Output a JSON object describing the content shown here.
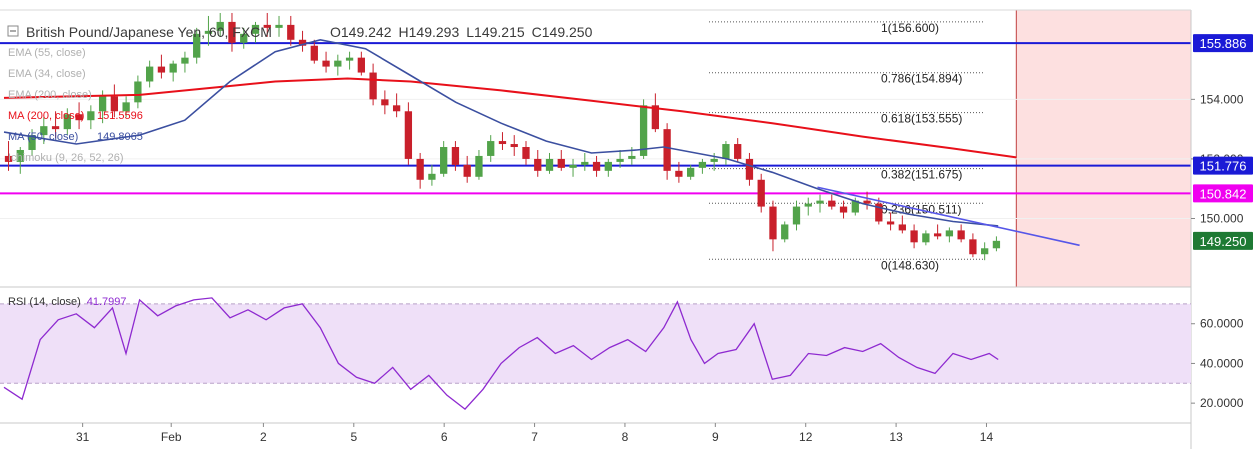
{
  "header": {
    "symbol": "British Pound/Japanese Yen, 60, FXCM",
    "open_label": "O",
    "open": "149.242",
    "high_label": "H",
    "high": "149.293",
    "low_label": "L",
    "low": "149.215",
    "close_label": "C",
    "close": "149.250"
  },
  "indicators": [
    {
      "label": "EMA (55, close)",
      "value": "",
      "color": "#b0b0b0"
    },
    {
      "label": "EMA (34, close)",
      "value": "",
      "color": "#b0b0b0"
    },
    {
      "label": "EMA (200, close)",
      "value": "",
      "color": "#b0b0b0"
    },
    {
      "label": "MA (200, close)",
      "value": "151.5596",
      "color": "#e8101a"
    },
    {
      "label": "MA (50, close)",
      "value": "149.8065",
      "color": "#3b4fa0"
    },
    {
      "label": "Ichimoku (9, 26, 52, 26)",
      "value": "",
      "color": "#b0b0b0"
    }
  ],
  "colors": {
    "up_candle": "#52a34a",
    "down_candle": "#c9202b",
    "ma200": "#e8101a",
    "ma50": "#3b4fa0",
    "support_line": "#1a1ad6",
    "pivot_line": "#f000f0",
    "trend_line": "#5656e8",
    "rsi": "#8e2ad0",
    "rsi_band": "#efe0f8",
    "future_zone": "#fde0e0",
    "last_price": "#1e7a34"
  },
  "chart_data": {
    "type": "candlestick",
    "price_axis": {
      "range": [
        147.7,
        157.0
      ],
      "ticks": [
        "154.000",
        "152.000",
        "150.000"
      ]
    },
    "time_axis": {
      "range": [
        0,
        13.0
      ],
      "labels": [
        {
          "t": 0.87,
          "text": "31"
        },
        {
          "t": 1.85,
          "text": "Feb"
        },
        {
          "t": 2.87,
          "text": "2"
        },
        {
          "t": 3.87,
          "text": "5"
        },
        {
          "t": 4.87,
          "text": "6"
        },
        {
          "t": 5.87,
          "text": "7"
        },
        {
          "t": 6.87,
          "text": "8"
        },
        {
          "t": 7.87,
          "text": "9"
        },
        {
          "t": 8.87,
          "text": "12"
        },
        {
          "t": 9.87,
          "text": "13"
        },
        {
          "t": 10.87,
          "text": "14"
        }
      ]
    },
    "horizontal_levels": [
      {
        "value": 155.886,
        "label": "155.886",
        "kind": "support"
      },
      {
        "value": 151.776,
        "label": "151.776",
        "kind": "support"
      },
      {
        "value": 150.842,
        "label": "150.842",
        "kind": "pivot"
      }
    ],
    "last_price": {
      "value": 149.25,
      "label": "149.250"
    },
    "fibonacci": [
      {
        "label": "1(156.600)",
        "value": 156.6
      },
      {
        "label": "0.786(154.894)",
        "value": 154.894
      },
      {
        "label": "0.618(153.555)",
        "value": 153.555
      },
      {
        "label": "0.382(151.675)",
        "value": 151.675
      },
      {
        "label": "0.236(150.511)",
        "value": 150.511
      },
      {
        "label": "0(148.630)",
        "value": 148.63
      }
    ],
    "fib_time_span": [
      7.8,
      10.85
    ],
    "trend_line": {
      "t": [
        9.0,
        11.9
      ],
      "price": [
        151.05,
        149.1
      ]
    },
    "future_zone_from": 11.2,
    "ohlc": [
      [
        152.1,
        152.6,
        151.6,
        151.9
      ],
      [
        151.9,
        152.4,
        151.5,
        152.3
      ],
      [
        152.3,
        153.0,
        152.1,
        152.8
      ],
      [
        152.8,
        153.4,
        152.5,
        153.1
      ],
      [
        153.1,
        153.6,
        152.7,
        153.0
      ],
      [
        153.0,
        153.7,
        152.8,
        153.5
      ],
      [
        153.5,
        153.9,
        153.0,
        153.3
      ],
      [
        153.3,
        153.8,
        153.0,
        153.6
      ],
      [
        153.6,
        154.3,
        153.2,
        154.1
      ],
      [
        154.1,
        154.5,
        153.4,
        153.6
      ],
      [
        153.6,
        154.1,
        153.4,
        153.9
      ],
      [
        153.9,
        154.8,
        153.7,
        154.6
      ],
      [
        154.6,
        155.3,
        154.4,
        155.1
      ],
      [
        155.1,
        155.5,
        154.7,
        154.9
      ],
      [
        154.9,
        155.3,
        154.6,
        155.2
      ],
      [
        155.2,
        155.6,
        154.9,
        155.4
      ],
      [
        155.4,
        156.4,
        155.2,
        156.2
      ],
      [
        156.2,
        156.8,
        155.8,
        156.3
      ],
      [
        156.3,
        156.9,
        156.1,
        156.6
      ],
      [
        156.6,
        156.9,
        155.6,
        155.9
      ],
      [
        155.9,
        156.4,
        155.7,
        156.2
      ],
      [
        156.2,
        156.6,
        155.9,
        156.5
      ],
      [
        156.5,
        156.9,
        156.1,
        156.4
      ],
      [
        156.4,
        156.8,
        156.1,
        156.5
      ],
      [
        156.5,
        156.8,
        155.8,
        156.0
      ],
      [
        156.0,
        156.3,
        155.6,
        155.8
      ],
      [
        155.8,
        156.0,
        155.2,
        155.3
      ],
      [
        155.3,
        155.6,
        154.9,
        155.1
      ],
      [
        155.1,
        155.5,
        154.8,
        155.3
      ],
      [
        155.3,
        155.6,
        155.0,
        155.4
      ],
      [
        155.4,
        155.6,
        154.8,
        154.9
      ],
      [
        154.9,
        155.2,
        153.8,
        154.0
      ],
      [
        154.0,
        154.3,
        153.5,
        153.8
      ],
      [
        153.8,
        154.2,
        153.4,
        153.6
      ],
      [
        153.6,
        153.9,
        151.8,
        152.0
      ],
      [
        152.0,
        152.2,
        151.0,
        151.3
      ],
      [
        151.3,
        151.8,
        151.1,
        151.5
      ],
      [
        151.5,
        152.6,
        151.4,
        152.4
      ],
      [
        152.4,
        152.6,
        151.6,
        151.8
      ],
      [
        151.8,
        152.1,
        151.2,
        151.4
      ],
      [
        151.4,
        152.3,
        151.3,
        152.1
      ],
      [
        152.1,
        152.8,
        151.9,
        152.6
      ],
      [
        152.6,
        152.9,
        152.3,
        152.5
      ],
      [
        152.5,
        152.8,
        152.1,
        152.4
      ],
      [
        152.4,
        152.6,
        151.8,
        152.0
      ],
      [
        152.0,
        152.3,
        151.4,
        151.6
      ],
      [
        151.6,
        152.2,
        151.5,
        152.0
      ],
      [
        152.0,
        152.3,
        151.6,
        151.7
      ],
      [
        151.7,
        152.0,
        151.4,
        151.8
      ],
      [
        151.8,
        152.2,
        151.6,
        151.9
      ],
      [
        151.9,
        152.1,
        151.4,
        151.6
      ],
      [
        151.6,
        152.0,
        151.4,
        151.9
      ],
      [
        151.9,
        152.3,
        151.7,
        152.0
      ],
      [
        152.0,
        152.4,
        151.8,
        152.1
      ],
      [
        152.1,
        154.0,
        152.0,
        153.8
      ],
      [
        153.8,
        154.2,
        152.9,
        153.0
      ],
      [
        153.0,
        153.2,
        151.3,
        151.6
      ],
      [
        151.6,
        151.9,
        151.2,
        151.4
      ],
      [
        151.4,
        151.8,
        151.3,
        151.7
      ],
      [
        151.7,
        152.0,
        151.5,
        151.9
      ],
      [
        151.9,
        152.2,
        151.6,
        152.0
      ],
      [
        152.0,
        152.6,
        151.8,
        152.5
      ],
      [
        152.5,
        152.7,
        151.9,
        152.0
      ],
      [
        152.0,
        152.2,
        151.1,
        151.3
      ],
      [
        151.3,
        151.5,
        150.2,
        150.4
      ],
      [
        150.4,
        150.6,
        148.9,
        149.3
      ],
      [
        149.3,
        149.9,
        149.2,
        149.8
      ],
      [
        149.8,
        150.6,
        149.6,
        150.4
      ],
      [
        150.4,
        150.7,
        150.1,
        150.5
      ],
      [
        150.5,
        150.8,
        150.2,
        150.6
      ],
      [
        150.6,
        150.8,
        150.3,
        150.4
      ],
      [
        150.4,
        150.6,
        150.0,
        150.2
      ],
      [
        150.2,
        150.7,
        150.1,
        150.6
      ],
      [
        150.6,
        150.9,
        150.3,
        150.5
      ],
      [
        150.5,
        150.7,
        149.8,
        149.9
      ],
      [
        149.9,
        150.2,
        149.6,
        149.8
      ],
      [
        149.8,
        150.1,
        149.5,
        149.6
      ],
      [
        149.6,
        149.8,
        149.0,
        149.2
      ],
      [
        149.2,
        149.6,
        149.1,
        149.5
      ],
      [
        149.5,
        149.8,
        149.3,
        149.4
      ],
      [
        149.4,
        149.7,
        149.2,
        149.6
      ],
      [
        149.6,
        149.8,
        149.2,
        149.3
      ],
      [
        149.3,
        149.5,
        148.7,
        148.8
      ],
      [
        148.8,
        149.2,
        148.6,
        149.0
      ],
      [
        149.0,
        149.4,
        148.9,
        149.25
      ]
    ],
    "ma200": [
      [
        0.0,
        154.05
      ],
      [
        1.5,
        154.15
      ],
      [
        2.5,
        154.45
      ],
      [
        3.0,
        154.6
      ],
      [
        3.8,
        154.7
      ],
      [
        4.5,
        154.6
      ],
      [
        5.5,
        154.3
      ],
      [
        6.5,
        153.95
      ],
      [
        7.5,
        153.6
      ],
      [
        8.5,
        153.2
      ],
      [
        9.5,
        152.75
      ],
      [
        10.5,
        152.35
      ],
      [
        11.2,
        152.05
      ]
    ],
    "ma50": [
      [
        0.0,
        152.9
      ],
      [
        0.8,
        152.5
      ],
      [
        1.5,
        152.8
      ],
      [
        2.0,
        153.3
      ],
      [
        2.5,
        154.6
      ],
      [
        3.0,
        155.6
      ],
      [
        3.5,
        156.0
      ],
      [
        4.0,
        155.7
      ],
      [
        4.5,
        154.8
      ],
      [
        5.0,
        153.9
      ],
      [
        5.5,
        153.2
      ],
      [
        6.0,
        152.6
      ],
      [
        6.5,
        152.2
      ],
      [
        7.0,
        152.3
      ],
      [
        7.3,
        152.4
      ],
      [
        8.0,
        152.0
      ],
      [
        8.5,
        151.55
      ],
      [
        9.0,
        151.0
      ],
      [
        9.5,
        150.5
      ],
      [
        10.0,
        150.15
      ],
      [
        10.5,
        149.9
      ],
      [
        11.0,
        149.75
      ]
    ],
    "rsi": {
      "label": "RSI (14, close)",
      "value": "41.7997",
      "range": [
        10,
        78
      ],
      "ticks": [
        "60.0000",
        "40.0000",
        "20.0000"
      ],
      "bands": [
        30,
        70
      ],
      "points": [
        [
          0.0,
          28
        ],
        [
          0.2,
          22
        ],
        [
          0.4,
          52
        ],
        [
          0.6,
          62
        ],
        [
          0.8,
          65
        ],
        [
          1.0,
          58
        ],
        [
          1.2,
          68
        ],
        [
          1.35,
          45
        ],
        [
          1.5,
          72
        ],
        [
          1.7,
          64
        ],
        [
          1.9,
          69
        ],
        [
          2.1,
          72
        ],
        [
          2.3,
          73
        ],
        [
          2.5,
          63
        ],
        [
          2.7,
          67
        ],
        [
          2.9,
          62
        ],
        [
          3.1,
          68
        ],
        [
          3.3,
          70
        ],
        [
          3.5,
          58
        ],
        [
          3.7,
          40
        ],
        [
          3.9,
          33
        ],
        [
          4.1,
          30
        ],
        [
          4.3,
          38
        ],
        [
          4.5,
          27
        ],
        [
          4.7,
          34
        ],
        [
          4.9,
          24
        ],
        [
          5.1,
          17
        ],
        [
          5.3,
          27
        ],
        [
          5.5,
          40
        ],
        [
          5.7,
          48
        ],
        [
          5.9,
          53
        ],
        [
          6.1,
          45
        ],
        [
          6.3,
          49
        ],
        [
          6.5,
          42
        ],
        [
          6.7,
          48
        ],
        [
          6.9,
          52
        ],
        [
          7.1,
          46
        ],
        [
          7.3,
          58
        ],
        [
          7.45,
          71
        ],
        [
          7.6,
          52
        ],
        [
          7.75,
          40
        ],
        [
          7.9,
          45
        ],
        [
          8.1,
          47
        ],
        [
          8.3,
          60
        ],
        [
          8.5,
          32
        ],
        [
          8.7,
          34
        ],
        [
          8.9,
          45
        ],
        [
          9.1,
          44
        ],
        [
          9.3,
          48
        ],
        [
          9.5,
          46
        ],
        [
          9.7,
          50
        ],
        [
          9.9,
          43
        ],
        [
          10.1,
          38
        ],
        [
          10.3,
          35
        ],
        [
          10.5,
          45
        ],
        [
          10.7,
          42
        ],
        [
          10.9,
          45
        ],
        [
          11.0,
          42
        ]
      ]
    }
  }
}
